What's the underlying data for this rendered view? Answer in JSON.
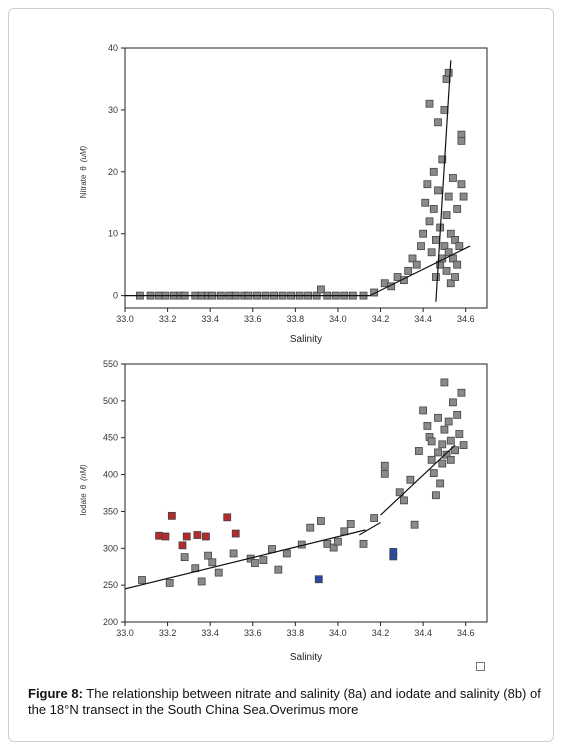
{
  "caption": {
    "label": "Figure 8:",
    "text": " The relationship between nitrate and salinity (8a) and iodate and salinity (8b) of the 18°N transect in the South China Sea.Overimus more"
  },
  "chart_data": [
    {
      "type": "scatter",
      "xlabel": "Salinity",
      "ylabel_parts": [
        "Nitrate",
        "θ",
        "(uM)"
      ],
      "xlim": [
        33.0,
        34.7
      ],
      "ylim": [
        -2,
        40
      ],
      "xticks": [
        "33.0",
        "33.2",
        "33.4",
        "33.6",
        "33.8",
        "34.0",
        "34.2",
        "34.4",
        "34.6"
      ],
      "yticks": [
        "0",
        "10",
        "20",
        "30",
        "40"
      ],
      "marker_color": "#8a8a8a",
      "points": [
        [
          33.07,
          0
        ],
        [
          33.12,
          0
        ],
        [
          33.16,
          0
        ],
        [
          33.19,
          0
        ],
        [
          33.23,
          0
        ],
        [
          33.26,
          0
        ],
        [
          33.28,
          0
        ],
        [
          33.33,
          0
        ],
        [
          33.36,
          0
        ],
        [
          33.39,
          0
        ],
        [
          33.41,
          0
        ],
        [
          33.45,
          0
        ],
        [
          33.49,
          0
        ],
        [
          33.52,
          0
        ],
        [
          33.56,
          0
        ],
        [
          33.58,
          0
        ],
        [
          33.62,
          0
        ],
        [
          33.66,
          0
        ],
        [
          33.7,
          0
        ],
        [
          33.74,
          0
        ],
        [
          33.78,
          0
        ],
        [
          33.82,
          0
        ],
        [
          33.86,
          0
        ],
        [
          33.9,
          0
        ],
        [
          33.92,
          1
        ],
        [
          33.95,
          0
        ],
        [
          33.99,
          0
        ],
        [
          34.03,
          0
        ],
        [
          34.07,
          0
        ],
        [
          34.12,
          0
        ],
        [
          34.17,
          0.5
        ],
        [
          34.22,
          2
        ],
        [
          34.25,
          1.5
        ],
        [
          34.28,
          3
        ],
        [
          34.31,
          2.5
        ],
        [
          34.33,
          4
        ],
        [
          34.35,
          6
        ],
        [
          34.37,
          5
        ],
        [
          34.39,
          8
        ],
        [
          34.4,
          10
        ],
        [
          34.41,
          15
        ],
        [
          34.42,
          18
        ],
        [
          34.43,
          12
        ],
        [
          34.43,
          31
        ],
        [
          34.44,
          7
        ],
        [
          34.45,
          14
        ],
        [
          34.45,
          20
        ],
        [
          34.46,
          3
        ],
        [
          34.46,
          9
        ],
        [
          34.47,
          28
        ],
        [
          34.47,
          17
        ],
        [
          34.48,
          5
        ],
        [
          34.48,
          11
        ],
        [
          34.49,
          22
        ],
        [
          34.49,
          6
        ],
        [
          34.5,
          30
        ],
        [
          34.5,
          8
        ],
        [
          34.51,
          35
        ],
        [
          34.51,
          13
        ],
        [
          34.51,
          4
        ],
        [
          34.52,
          36
        ],
        [
          34.52,
          16
        ],
        [
          34.52,
          7
        ],
        [
          34.53,
          10
        ],
        [
          34.53,
          2
        ],
        [
          34.54,
          19
        ],
        [
          34.54,
          6
        ],
        [
          34.55,
          9
        ],
        [
          34.55,
          3
        ],
        [
          34.56,
          14
        ],
        [
          34.57,
          8
        ],
        [
          34.58,
          26
        ],
        [
          34.58,
          25
        ],
        [
          34.58,
          18
        ],
        [
          34.59,
          16
        ],
        [
          34.56,
          5
        ]
      ],
      "lines": [
        [
          [
            33.0,
            0
          ],
          [
            34.15,
            0
          ]
        ],
        [
          [
            34.15,
            0
          ],
          [
            34.62,
            8
          ]
        ],
        [
          [
            34.46,
            -1
          ],
          [
            34.53,
            38
          ]
        ]
      ]
    },
    {
      "type": "scatter",
      "xlabel": "Salinity",
      "ylabel_parts": [
        "Iodate",
        "θ",
        "(nM)"
      ],
      "xlim": [
        33.0,
        34.7
      ],
      "ylim": [
        200,
        550
      ],
      "xticks": [
        "33.0",
        "33.2",
        "33.4",
        "33.6",
        "33.8",
        "34.0",
        "34.2",
        "34.4",
        "34.6"
      ],
      "yticks": [
        "200",
        "250",
        "300",
        "350",
        "400",
        "450",
        "500",
        "550"
      ],
      "series": [
        {
          "color": "#8a8a8a",
          "points": [
            [
              33.08,
              257
            ],
            [
              33.21,
              253
            ],
            [
              33.28,
              288
            ],
            [
              33.33,
              273
            ],
            [
              33.36,
              255
            ],
            [
              33.39,
              290
            ],
            [
              33.41,
              281
            ],
            [
              33.44,
              267
            ],
            [
              33.51,
              293
            ],
            [
              33.59,
              286
            ],
            [
              33.61,
              280
            ],
            [
              33.65,
              284
            ],
            [
              33.69,
              299
            ],
            [
              33.72,
              271
            ],
            [
              33.76,
              293
            ],
            [
              33.83,
              305
            ],
            [
              33.87,
              328
            ],
            [
              33.92,
              337
            ],
            [
              33.95,
              306
            ],
            [
              33.98,
              301
            ],
            [
              34.0,
              309
            ],
            [
              34.03,
              323
            ],
            [
              34.06,
              333
            ],
            [
              34.12,
              306
            ],
            [
              34.17,
              341
            ],
            [
              34.22,
              401
            ],
            [
              34.22,
              412
            ],
            [
              34.29,
              376
            ],
            [
              34.31,
              365
            ],
            [
              34.34,
              393
            ],
            [
              34.36,
              332
            ],
            [
              34.38,
              432
            ],
            [
              34.4,
              487
            ],
            [
              34.42,
              466
            ],
            [
              34.43,
              451
            ],
            [
              34.44,
              420
            ],
            [
              34.45,
              402
            ],
            [
              34.46,
              372
            ],
            [
              34.47,
              477
            ],
            [
              34.48,
              388
            ],
            [
              34.49,
              441
            ],
            [
              34.5,
              525
            ],
            [
              34.5,
              461
            ],
            [
              34.51,
              427
            ],
            [
              34.52,
              472
            ],
            [
              34.53,
              446
            ],
            [
              34.54,
              498
            ],
            [
              34.55,
              433
            ],
            [
              34.56,
              481
            ],
            [
              34.57,
              455
            ],
            [
              34.58,
              511
            ],
            [
              34.59,
              440
            ],
            [
              34.47,
              430
            ],
            [
              34.49,
              415
            ],
            [
              34.53,
              420
            ],
            [
              34.44,
              445
            ]
          ]
        },
        {
          "color": "#b52a2a",
          "points": [
            [
              33.16,
              317
            ],
            [
              33.19,
              316
            ],
            [
              33.22,
              344
            ],
            [
              33.27,
              304
            ],
            [
              33.29,
              316
            ],
            [
              33.34,
              318
            ],
            [
              33.38,
              316
            ],
            [
              33.48,
              342
            ],
            [
              33.52,
              320
            ]
          ]
        },
        {
          "color": "#2a4aa8",
          "points": [
            [
              33.91,
              258
            ],
            [
              34.26,
              289
            ],
            [
              34.26,
              295
            ]
          ]
        }
      ],
      "lines": [
        [
          [
            33.0,
            245
          ],
          [
            34.13,
            325
          ]
        ],
        [
          [
            34.1,
            318
          ],
          [
            34.2,
            335
          ]
        ],
        [
          [
            34.2,
            345
          ],
          [
            34.55,
            440
          ]
        ]
      ]
    }
  ]
}
